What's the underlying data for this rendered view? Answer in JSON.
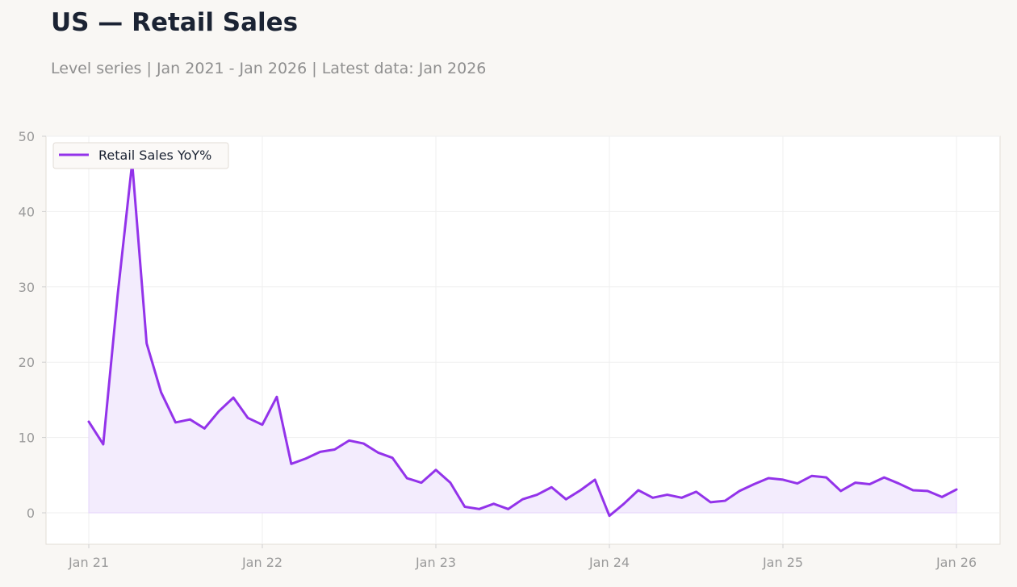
{
  "header": {
    "title": "US — Retail Sales",
    "subtitle": "Level series | Jan 2021 - Jan 2026 | Latest data: Jan 2026"
  },
  "colors": {
    "series": "#9333ea",
    "fill": "#f3ecfd",
    "background": "#f9f7f4",
    "plot_background": "#ffffff",
    "grid": "#efefef",
    "axis_text": "#9a9a9a",
    "title": "#1b2333"
  },
  "chart_data": {
    "type": "area",
    "title": "US — Retail Sales",
    "subtitle": "Level series | Jan 2021 - Jan 2026 | Latest data: Jan 2026",
    "xlabel": "",
    "ylabel": "",
    "ylim": [
      -4.2,
      50
    ],
    "yticks": [
      0,
      10,
      20,
      30,
      40,
      50
    ],
    "xlim": [
      "2020-11",
      "2026-03"
    ],
    "xticks": [
      {
        "date": "2021-01",
        "label": "Jan 21"
      },
      {
        "date": "2022-01",
        "label": "Jan 22"
      },
      {
        "date": "2023-01",
        "label": "Jan 23"
      },
      {
        "date": "2024-01",
        "label": "Jan 24"
      },
      {
        "date": "2025-01",
        "label": "Jan 25"
      },
      {
        "date": "2026-01",
        "label": "Jan 26"
      }
    ],
    "grid": true,
    "legend": "top-left",
    "series": [
      {
        "name": "Retail Sales YoY%",
        "x": [
          "2021-01",
          "2021-02",
          "2021-03",
          "2021-04",
          "2021-05",
          "2021-06",
          "2021-07",
          "2021-08",
          "2021-09",
          "2021-10",
          "2021-11",
          "2021-12",
          "2022-01",
          "2022-02",
          "2022-03",
          "2022-04",
          "2022-05",
          "2022-06",
          "2022-07",
          "2022-08",
          "2022-09",
          "2022-10",
          "2022-11",
          "2022-12",
          "2023-01",
          "2023-02",
          "2023-03",
          "2023-04",
          "2023-05",
          "2023-06",
          "2023-07",
          "2023-08",
          "2023-09",
          "2023-10",
          "2023-11",
          "2023-12",
          "2024-01",
          "2024-02",
          "2024-03",
          "2024-04",
          "2024-05",
          "2024-06",
          "2024-07",
          "2024-08",
          "2024-09",
          "2024-10",
          "2024-11",
          "2024-12",
          "2025-01",
          "2025-02",
          "2025-03",
          "2025-04",
          "2025-05",
          "2025-06",
          "2025-07",
          "2025-08",
          "2025-09",
          "2025-10",
          "2025-11",
          "2025-12",
          "2026-01"
        ],
        "values": [
          12.1,
          9.1,
          29.0,
          46.5,
          22.5,
          16.0,
          12.0,
          12.4,
          11.2,
          13.5,
          15.3,
          12.6,
          11.7,
          15.4,
          6.5,
          7.2,
          8.1,
          8.4,
          9.6,
          9.2,
          8.0,
          7.3,
          4.6,
          4.0,
          5.7,
          4.0,
          0.8,
          0.5,
          1.2,
          0.5,
          1.8,
          2.4,
          3.4,
          1.8,
          3.0,
          4.4,
          -0.4,
          1.2,
          3.0,
          2.0,
          2.4,
          2.0,
          2.8,
          1.4,
          1.6,
          2.9,
          3.8,
          4.6,
          4.4,
          3.9,
          4.9,
          4.7,
          2.9,
          4.0,
          3.8,
          4.7,
          3.9,
          3.0,
          2.9,
          2.1,
          3.1
        ]
      }
    ]
  }
}
